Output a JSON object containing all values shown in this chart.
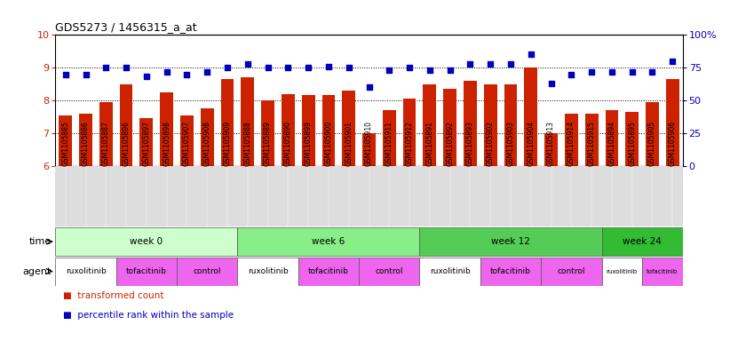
{
  "title": "GDS5273 / 1456315_a_at",
  "samples": [
    "GSM1105885",
    "GSM1105886",
    "GSM1105887",
    "GSM1105896",
    "GSM1105897",
    "GSM1105898",
    "GSM1105907",
    "GSM1105908",
    "GSM1105909",
    "GSM1105888",
    "GSM1105889",
    "GSM1105890",
    "GSM1105899",
    "GSM1105900",
    "GSM1105901",
    "GSM1105910",
    "GSM1105911",
    "GSM1105912",
    "GSM1105891",
    "GSM1105892",
    "GSM1105893",
    "GSM1105902",
    "GSM1105903",
    "GSM1105904",
    "GSM1105913",
    "GSM1105914",
    "GSM1105915",
    "GSM1105894",
    "GSM1105895",
    "GSM1105905",
    "GSM1105906"
  ],
  "bar_values": [
    7.55,
    7.6,
    7.95,
    8.5,
    7.45,
    8.25,
    7.55,
    7.75,
    8.65,
    8.7,
    8.0,
    8.2,
    8.15,
    8.15,
    8.3,
    7.0,
    7.7,
    8.05,
    8.5,
    8.35,
    8.6,
    8.5,
    8.5,
    9.0,
    7.0,
    7.6,
    7.6,
    7.7,
    7.65,
    7.95,
    8.65
  ],
  "dot_values_pct": [
    70,
    70,
    75,
    75,
    68,
    72,
    70,
    72,
    75,
    78,
    75,
    75,
    75,
    76,
    75,
    60,
    73,
    75,
    73,
    73,
    78,
    78,
    78,
    85,
    63,
    70,
    72,
    72,
    72,
    72,
    80
  ],
  "ylim": [
    6,
    10
  ],
  "y2lim": [
    0,
    100
  ],
  "yticks": [
    6,
    7,
    8,
    9,
    10
  ],
  "y2ticks_vals": [
    0,
    25,
    50,
    75,
    100
  ],
  "y2ticks_labels": [
    "0",
    "25",
    "50",
    "75",
    "100%"
  ],
  "bar_color": "#CC2200",
  "dot_color": "#0000BB",
  "grid_color": "#000000",
  "xticklabel_bg": "#DDDDDD",
  "time_groups": [
    {
      "label": "week 0",
      "start": 0,
      "end": 9,
      "color": "#CCFFCC"
    },
    {
      "label": "week 6",
      "start": 9,
      "end": 18,
      "color": "#88EE88"
    },
    {
      "label": "week 12",
      "start": 18,
      "end": 27,
      "color": "#55CC55"
    },
    {
      "label": "week 24",
      "start": 27,
      "end": 31,
      "color": "#33BB33"
    }
  ],
  "agent_groups": [
    {
      "label": "ruxolitinib",
      "start": 0,
      "end": 3,
      "color": "#FFFFFF"
    },
    {
      "label": "tofacitinib",
      "start": 3,
      "end": 6,
      "color": "#EE66EE"
    },
    {
      "label": "control",
      "start": 6,
      "end": 9,
      "color": "#EE66EE"
    },
    {
      "label": "ruxolitinib",
      "start": 9,
      "end": 12,
      "color": "#FFFFFF"
    },
    {
      "label": "tofacitinib",
      "start": 12,
      "end": 15,
      "color": "#EE66EE"
    },
    {
      "label": "control",
      "start": 15,
      "end": 18,
      "color": "#EE66EE"
    },
    {
      "label": "ruxolitinib",
      "start": 18,
      "end": 21,
      "color": "#FFFFFF"
    },
    {
      "label": "tofacitinib",
      "start": 21,
      "end": 24,
      "color": "#EE66EE"
    },
    {
      "label": "control",
      "start": 24,
      "end": 27,
      "color": "#EE66EE"
    },
    {
      "label": "ruxolitinib",
      "start": 27,
      "end": 29,
      "color": "#FFFFFF"
    },
    {
      "label": "tofacitinib",
      "start": 29,
      "end": 31,
      "color": "#EE66EE"
    }
  ],
  "legend_tc_color": "#CC2200",
  "legend_pr_color": "#0000BB"
}
